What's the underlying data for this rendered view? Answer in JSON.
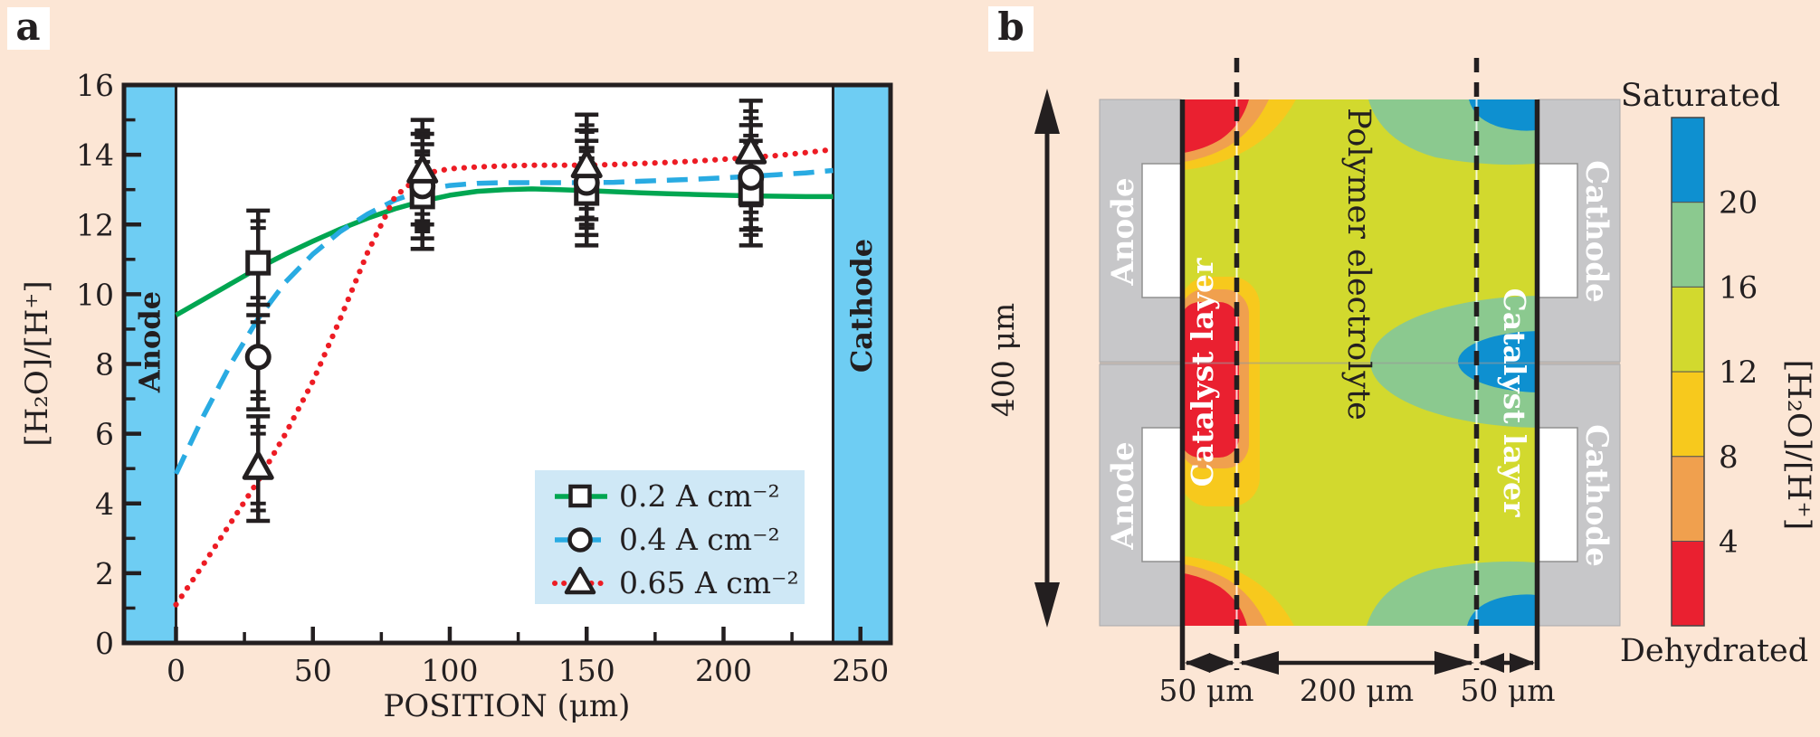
{
  "palette": {
    "background": "#fce6d5",
    "plot_bg": "#ffffff",
    "ink": "#231f20",
    "electrode_band": "#6ecdf3",
    "legend_bg": "#cfe8f6",
    "series_green": "#00a651",
    "series_blue": "#29abe2",
    "series_red": "#ed1c24",
    "gray_block": "#c7c7c9",
    "channel_white": "#ffffff",
    "cb_blue": "#0e90d0",
    "cb_green": "#8bc98f",
    "cb_yellowgreen": "#d2d92e",
    "cb_gold": "#f7c91d",
    "cb_orange": "#f0a04e",
    "cb_red": "#ea2030"
  },
  "panel_a": {
    "label": "a"
  },
  "chart_data": {
    "type": "line",
    "title": "",
    "xlabel": "POSITION (μm)",
    "ylabel": "[H₂O]/[H⁺]",
    "xlim": [
      -19,
      261
    ],
    "ylim": [
      0,
      16
    ],
    "x_ticks": [
      0,
      50,
      100,
      150,
      200,
      250
    ],
    "x_minor_ticks": [
      25,
      75,
      125,
      175,
      225
    ],
    "y_ticks": [
      0,
      2,
      4,
      6,
      8,
      10,
      12,
      14,
      16
    ],
    "y_minor_ticks": [
      1,
      3,
      5,
      7,
      9,
      11,
      13,
      15
    ],
    "regions": [
      {
        "label": "Anode",
        "x0": -19,
        "x1": 0
      },
      {
        "label": "Cathode",
        "x0": 240,
        "x1": 261
      }
    ],
    "series": [
      {
        "name": "0.2 A cm⁻²",
        "color": "series_green",
        "line": "solid",
        "marker": "square",
        "curve_x": [
          0,
          10,
          20,
          30,
          40,
          50,
          60,
          70,
          80,
          90,
          100,
          110,
          120,
          130,
          140,
          150,
          160,
          170,
          180,
          190,
          200,
          210,
          220,
          230,
          240
        ],
        "curve_y": [
          9.4,
          9.85,
          10.3,
          10.75,
          11.15,
          11.52,
          11.87,
          12.18,
          12.45,
          12.67,
          12.84,
          12.95,
          13.0,
          13.02,
          13.0,
          12.97,
          12.94,
          12.91,
          12.88,
          12.86,
          12.84,
          12.82,
          12.81,
          12.8,
          12.8
        ],
        "data_x": [
          30,
          90,
          150,
          210
        ],
        "data_y": [
          10.9,
          12.8,
          12.9,
          12.9
        ],
        "yerr": 1.5,
        "yerr_inner": [
          1.0,
          1.2
        ]
      },
      {
        "name": "0.4 A cm⁻²",
        "color": "series_blue",
        "line": "dashed",
        "marker": "circle",
        "curve_x": [
          0,
          10,
          20,
          30,
          40,
          50,
          60,
          70,
          80,
          90,
          100,
          110,
          120,
          130,
          140,
          150,
          160,
          170,
          180,
          190,
          200,
          210,
          220,
          230,
          240
        ],
        "curve_y": [
          4.85,
          6.5,
          8.0,
          9.3,
          10.35,
          11.15,
          11.8,
          12.3,
          12.7,
          12.98,
          13.12,
          13.18,
          13.2,
          13.2,
          13.2,
          13.2,
          13.21,
          13.24,
          13.27,
          13.3,
          13.34,
          13.38,
          13.43,
          13.48,
          13.55
        ],
        "data_x": [
          30,
          90,
          150,
          210
        ],
        "data_y": [
          8.2,
          13.1,
          13.2,
          13.35
        ],
        "yerr": 1.5,
        "yerr_inner": [
          1.0,
          1.2
        ]
      },
      {
        "name": "0.65 A cm⁻²",
        "color": "series_red",
        "line": "dotted",
        "marker": "triangle",
        "curve_x": [
          0,
          10,
          20,
          30,
          40,
          50,
          60,
          70,
          80,
          90,
          100,
          110,
          120,
          130,
          140,
          150,
          160,
          170,
          180,
          190,
          200,
          210,
          220,
          230,
          240
        ],
        "curve_y": [
          1.1,
          2.25,
          3.45,
          4.65,
          6.0,
          7.5,
          9.3,
          11.2,
          12.8,
          13.45,
          13.6,
          13.65,
          13.68,
          13.7,
          13.7,
          13.7,
          13.72,
          13.75,
          13.78,
          13.82,
          13.87,
          13.92,
          13.98,
          14.06,
          14.15
        ],
        "data_x": [
          30,
          90,
          150,
          210
        ],
        "data_y": [
          5.0,
          13.5,
          13.65,
          14.05
        ],
        "yerr": 1.5,
        "yerr_inner": [
          1.0,
          1.2
        ]
      }
    ]
  },
  "panel_b": {
    "label": "b",
    "height_label": "400 μm",
    "anode_label": "Anode",
    "cathode_label": "Cathode",
    "catalyst_label": "Catalyst layer",
    "electrolyte_label": "Polymer electrolyte",
    "colorbar": {
      "top_label": "Saturated",
      "bottom_label": "Dehydrated",
      "axis_label": "[H₂O]/[H⁺]",
      "tick_labels": [
        "20",
        "16",
        "12",
        "8",
        "4"
      ]
    },
    "dim_labels": [
      "50 μm",
      "200 μm",
      "50 μm"
    ]
  }
}
